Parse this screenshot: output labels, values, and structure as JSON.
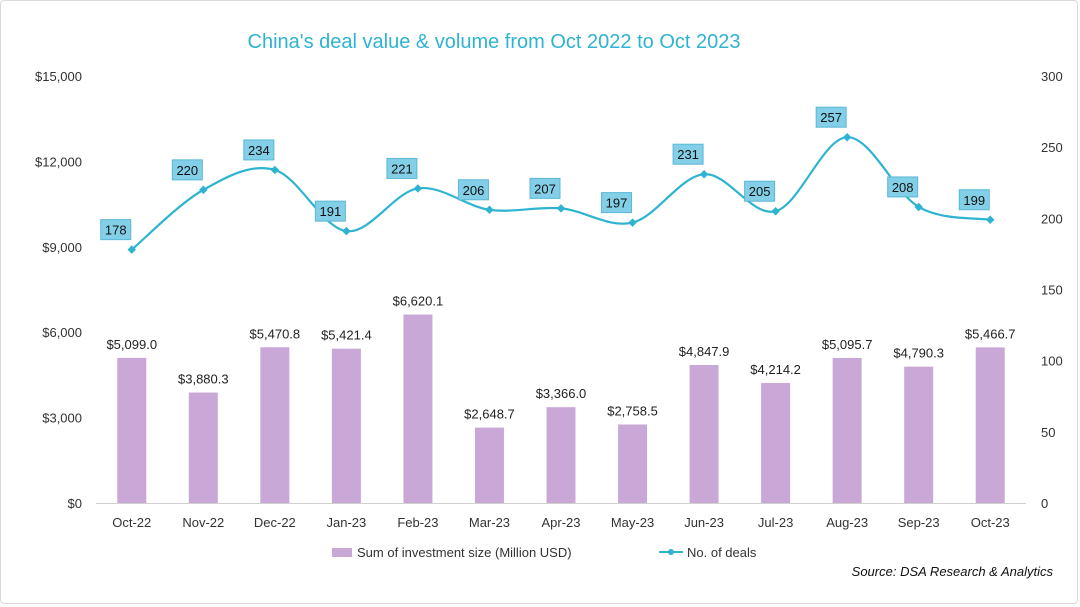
{
  "chart_data": {
    "type": "bar+line",
    "title": "China's deal value & volume from Oct 2022 to Oct 2023",
    "categories": [
      "Oct-22",
      "Nov-22",
      "Dec-22",
      "Jan-23",
      "Feb-23",
      "Mar-23",
      "Apr-23",
      "May-23",
      "Jun-23",
      "Jul-23",
      "Aug-23",
      "Sep-23",
      "Oct-23"
    ],
    "series": [
      {
        "name": "Sum of investment size (Million USD)",
        "kind": "bar",
        "axis": "left",
        "color": "#c9a8d8",
        "values": [
          5099.0,
          3880.3,
          5470.8,
          5421.4,
          6620.1,
          2648.7,
          3366.0,
          2758.5,
          4847.9,
          4214.2,
          5095.7,
          4790.3,
          5466.7
        ],
        "labels": [
          "$5,099.0",
          "$3,880.3",
          "$5,470.8",
          "$5,421.4",
          "$6,620.1",
          "$2,648.7",
          "$3,366.0",
          "$2,758.5",
          "$4,847.9",
          "$4,214.2",
          "$5,095.7",
          "$4,790.3",
          "$5,466.7"
        ]
      },
      {
        "name": "No. of deals",
        "kind": "line",
        "axis": "right",
        "color": "#2eb3d1",
        "values": [
          178,
          220,
          234,
          191,
          221,
          206,
          207,
          197,
          231,
          205,
          257,
          208,
          199
        ],
        "labels": [
          "178",
          "220",
          "234",
          "191",
          "221",
          "206",
          "207",
          "197",
          "231",
          "205",
          "257",
          "208",
          "199"
        ]
      }
    ],
    "y_left": {
      "range": [
        0,
        15000
      ],
      "ticks": [
        0,
        3000,
        6000,
        9000,
        12000,
        15000
      ],
      "tick_labels": [
        "$0",
        "$3,000",
        "$6,000",
        "$9,000",
        "$12,000",
        "$15,000"
      ]
    },
    "y_right": {
      "range": [
        0,
        300
      ],
      "ticks": [
        0,
        50,
        100,
        150,
        200,
        250,
        300
      ],
      "tick_labels": [
        "0",
        "50",
        "100",
        "150",
        "200",
        "250",
        "300"
      ]
    },
    "label_box_color": "#82cfe7",
    "legend_position": "bottom",
    "grid": false
  },
  "source": "Source: DSA Research & Analytics"
}
